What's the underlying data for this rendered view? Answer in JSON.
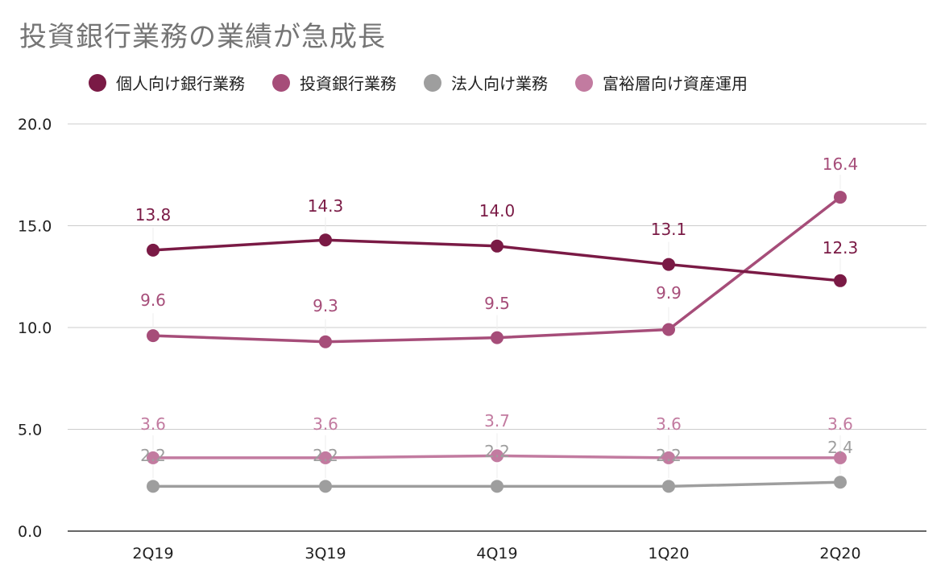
{
  "chart_data": {
    "type": "line",
    "title": "投資銀行業務の業績が急成長",
    "categories": [
      "2Q19",
      "3Q19",
      "4Q19",
      "1Q20",
      "2Q20"
    ],
    "ylim": [
      0,
      20
    ],
    "yticks": [
      "0.0",
      "5.0",
      "10.0",
      "15.0",
      "20.0"
    ],
    "grid": true,
    "legend": "top",
    "series": [
      {
        "name": "個人向け銀行業務",
        "color": "#7a1a45",
        "values": [
          13.8,
          14.3,
          14.0,
          13.1,
          12.3
        ],
        "labels": [
          "13.8",
          "14.3",
          "14.0",
          "13.1",
          "12.3"
        ]
      },
      {
        "name": "投資銀行業務",
        "color": "#a64d79",
        "values": [
          9.6,
          9.3,
          9.5,
          9.9,
          16.4
        ],
        "labels": [
          "9.6",
          "9.3",
          "9.5",
          "9.9",
          "16.4"
        ]
      },
      {
        "name": "法人向け業務",
        "color": "#9e9e9e",
        "values": [
          2.2,
          2.2,
          2.2,
          2.2,
          2.4
        ],
        "labels": [
          "2.2",
          "2.2",
          "2.2",
          "2.2",
          "2.4"
        ]
      },
      {
        "name": "富裕層向け資産運用",
        "color": "#c27ba0",
        "values": [
          3.6,
          3.6,
          3.7,
          3.6,
          3.6
        ],
        "labels": [
          "3.6",
          "3.6",
          "3.7",
          "3.6",
          "3.6"
        ]
      }
    ]
  }
}
